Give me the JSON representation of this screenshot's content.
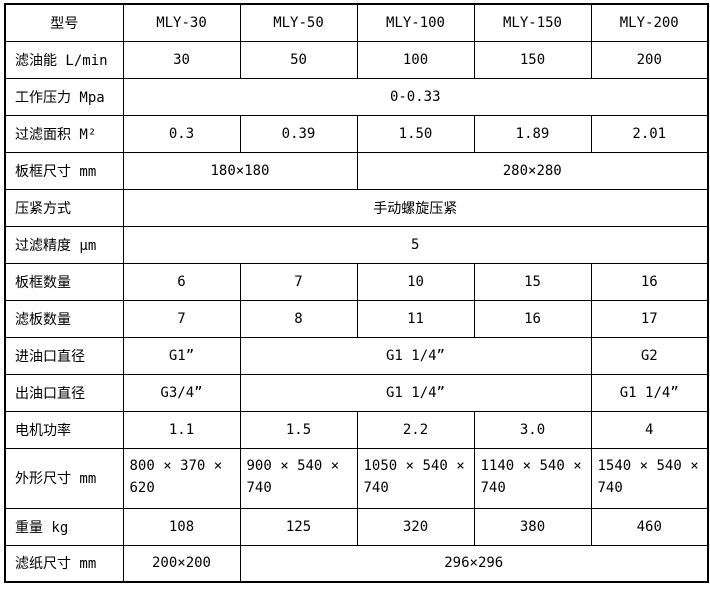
{
  "page": {
    "background_color": "#ffffff",
    "border_color": "#000000",
    "text_color": "#000000"
  },
  "table": {
    "rows": [
      {
        "label": "型号",
        "cells": [
          {
            "text": "MLY-30"
          },
          {
            "text": "MLY-50"
          },
          {
            "text": "MLY-100"
          },
          {
            "text": "MLY-150"
          },
          {
            "text": "MLY-200"
          }
        ]
      },
      {
        "label": "滤油能 L/min",
        "cells": [
          {
            "text": "30"
          },
          {
            "text": "50"
          },
          {
            "text": "100"
          },
          {
            "text": "150"
          },
          {
            "text": "200"
          }
        ]
      },
      {
        "label": "工作压力 Mpa",
        "cells": [
          {
            "text": "0-0.33",
            "colspan": 5
          }
        ]
      },
      {
        "label": "过滤面积 M²",
        "cells": [
          {
            "text": "0.3"
          },
          {
            "text": "0.39"
          },
          {
            "text": "1.50"
          },
          {
            "text": "1.89"
          },
          {
            "text": "2.01"
          }
        ]
      },
      {
        "label": "板框尺寸 mm",
        "cells": [
          {
            "text": "180×180",
            "colspan": 2
          },
          {
            "text": "280×280",
            "colspan": 3
          }
        ]
      },
      {
        "label": "压紧方式",
        "cells": [
          {
            "text": "手动螺旋压紧",
            "colspan": 5
          }
        ]
      },
      {
        "label": "过滤精度 μm",
        "cells": [
          {
            "text": "5",
            "colspan": 5
          }
        ]
      },
      {
        "label": "板框数量",
        "cells": [
          {
            "text": "6"
          },
          {
            "text": "7"
          },
          {
            "text": "10"
          },
          {
            "text": "15"
          },
          {
            "text": "16"
          }
        ]
      },
      {
        "label": "滤板数量",
        "cells": [
          {
            "text": "7"
          },
          {
            "text": "8"
          },
          {
            "text": "11"
          },
          {
            "text": "16"
          },
          {
            "text": "17"
          }
        ]
      },
      {
        "label": "进油口直径",
        "cells": [
          {
            "text": "G1”"
          },
          {
            "text": "G1 1/4”",
            "colspan": 3
          },
          {
            "text": "G2"
          }
        ]
      },
      {
        "label": "出油口直径",
        "cells": [
          {
            "text": "G3/4”"
          },
          {
            "text": "G1 1/4”",
            "colspan": 3
          },
          {
            "text": "G1 1/4”"
          }
        ]
      },
      {
        "label": "电机功率",
        "cells": [
          {
            "text": "1.1"
          },
          {
            "text": "1.5"
          },
          {
            "text": "2.2"
          },
          {
            "text": "3.0"
          },
          {
            "text": "4"
          }
        ]
      },
      {
        "label": "外形尺寸 mm",
        "cells": [
          {
            "text": "800 × 370 × 620"
          },
          {
            "text": "900 × 540 × 740"
          },
          {
            "text": "1050 × 540 × 740"
          },
          {
            "text": "1140 × 540 × 740"
          },
          {
            "text": "1540 × 540 × 740"
          }
        ]
      },
      {
        "label": "重量 kg",
        "cells": [
          {
            "text": "108"
          },
          {
            "text": "125"
          },
          {
            "text": "320"
          },
          {
            "text": "380"
          },
          {
            "text": "460"
          }
        ]
      },
      {
        "label": "滤纸尺寸 mm",
        "cells": [
          {
            "text": "200×200"
          },
          {
            "text": "296×296",
            "colspan": 4
          }
        ]
      }
    ]
  }
}
